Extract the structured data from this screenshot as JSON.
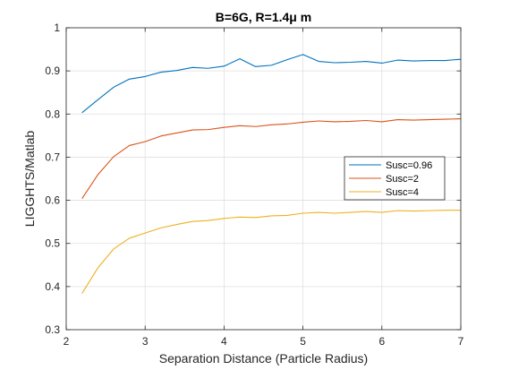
{
  "chart_data": {
    "type": "line",
    "title": "B=6G, R=1.4μ m",
    "xlabel": "Separation Distance (Particle Radius)",
    "ylabel": "LIGGHTS/Matlab",
    "xlim": [
      2,
      7
    ],
    "ylim": [
      0.3,
      1
    ],
    "xticks": [
      2,
      3,
      4,
      5,
      6,
      7
    ],
    "yticks": [
      0.3,
      0.4,
      0.5,
      0.6,
      0.7,
      0.8,
      0.9,
      1
    ],
    "ytick_labels": [
      "0.3",
      "0.4",
      "0.5",
      "0.6",
      "0.7",
      "0.8",
      "0.9",
      "1"
    ],
    "grid": true,
    "legend_position": "right",
    "x": [
      2.2,
      2.4,
      2.6,
      2.8,
      3.0,
      3.2,
      3.4,
      3.6,
      3.8,
      4.0,
      4.2,
      4.4,
      4.6,
      4.8,
      5.0,
      5.2,
      5.4,
      5.6,
      5.8,
      6.0,
      6.2,
      6.4,
      6.6,
      6.8,
      7.0
    ],
    "series": [
      {
        "name": "Susc=0.96",
        "color": "#0072BD",
        "values": [
          0.803,
          0.833,
          0.862,
          0.881,
          0.887,
          0.897,
          0.901,
          0.908,
          0.906,
          0.911,
          0.928,
          0.91,
          0.913,
          0.926,
          0.938,
          0.922,
          0.919,
          0.92,
          0.922,
          0.918,
          0.925,
          0.923,
          0.924,
          0.924,
          0.927
        ]
      },
      {
        "name": "Susc=2",
        "color": "#D95319",
        "values": [
          0.604,
          0.659,
          0.701,
          0.727,
          0.736,
          0.749,
          0.756,
          0.763,
          0.764,
          0.769,
          0.773,
          0.771,
          0.775,
          0.777,
          0.781,
          0.784,
          0.782,
          0.783,
          0.785,
          0.782,
          0.787,
          0.786,
          0.787,
          0.788,
          0.789
        ]
      },
      {
        "name": "Susc=4",
        "color": "#EDB120",
        "values": [
          0.384,
          0.443,
          0.487,
          0.512,
          0.524,
          0.536,
          0.544,
          0.551,
          0.553,
          0.558,
          0.561,
          0.56,
          0.564,
          0.565,
          0.57,
          0.572,
          0.57,
          0.572,
          0.574,
          0.572,
          0.576,
          0.575,
          0.576,
          0.577,
          0.577
        ]
      }
    ]
  }
}
